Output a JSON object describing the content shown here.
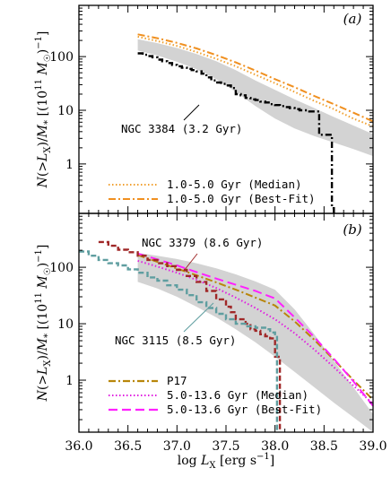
{
  "chart_data": [
    {
      "type": "line",
      "panel_label": "(a)",
      "ylabel": "N(>L_X)/M_* [(10^11 M_sun)^-1]",
      "ylog": true,
      "ylim": [
        0.12,
        900
      ],
      "xlim": [
        36.0,
        39.0
      ],
      "ytick_labels": [
        "1",
        "10",
        "100"
      ],
      "ytick_values": [
        1,
        10,
        100
      ],
      "band": {
        "x": [
          36.6,
          36.8,
          37.0,
          37.2,
          37.4,
          37.6,
          37.8,
          38.0,
          38.2,
          38.4,
          38.6,
          38.8,
          39.0
        ],
        "lower": [
          130,
          105,
          80,
          58,
          38,
          22,
          12,
          7,
          4.6,
          3.3,
          2.5,
          1.9,
          1.4
        ],
        "upper": [
          210,
          178,
          145,
          112,
          82,
          56,
          36,
          24,
          16,
          11,
          7.5,
          5.2,
          3.6
        ]
      },
      "series": [
        {
          "name": "1.0-5.0 Gyr (Median)",
          "style": "dotted",
          "color": "#f0a030",
          "x": [
            36.6,
            36.8,
            37.0,
            37.2,
            37.4,
            37.6,
            37.8,
            38.0,
            38.2,
            38.4,
            38.6,
            38.8,
            39.0
          ],
          "y": [
            235,
            195,
            158,
            122,
            91,
            66,
            46,
            32,
            22,
            15,
            10.5,
            7,
            5
          ]
        },
        {
          "name": "1.0-5.0 Gyr (Best-Fit)",
          "style": "dashdot",
          "color": "#f09020",
          "x": [
            36.6,
            36.8,
            37.0,
            37.2,
            37.4,
            37.6,
            37.8,
            38.0,
            38.2,
            38.4,
            38.6,
            38.8,
            39.0
          ],
          "y": [
            260,
            220,
            180,
            142,
            107,
            78,
            55,
            38,
            27,
            18.5,
            13,
            9,
            6.2
          ]
        },
        {
          "name": "NGC 3384 (3.2 Gyr)",
          "style": "dashdot-step",
          "color": "#000000",
          "x": [
            36.6,
            36.65,
            36.7,
            36.75,
            36.8,
            36.85,
            36.9,
            36.95,
            37.0,
            37.05,
            37.1,
            37.15,
            37.2,
            37.25,
            37.3,
            37.35,
            37.4,
            37.45,
            37.5,
            37.55,
            37.6,
            37.65,
            37.7,
            37.75,
            37.8,
            37.85,
            37.9,
            37.95,
            38.0,
            38.05,
            38.1,
            38.15,
            38.2,
            38.25,
            38.3,
            38.35,
            38.4,
            38.45,
            38.5,
            38.55,
            38.58,
            38.6
          ],
          "y": [
            115,
            108,
            102,
            97,
            88,
            82,
            76,
            70,
            66,
            62,
            59,
            56,
            53,
            48,
            41,
            36,
            33,
            31,
            29,
            26,
            20,
            19,
            17,
            16,
            15.5,
            14.5,
            14,
            13,
            12.5,
            12,
            11.5,
            11,
            10.5,
            10,
            10,
            9.5,
            9.5,
            3.5,
            3.5,
            3.5,
            0.15,
            0.12
          ]
        }
      ],
      "annotation": "NGC 3384 (3.2 Gyr)",
      "legend": [
        "1.0-5.0 Gyr (Median)",
        "1.0-5.0 Gyr (Best-Fit)"
      ]
    },
    {
      "type": "line",
      "panel_label": "(b)",
      "ylabel": "N(>L_X)/M_* [(10^11 M_sun)^-1]",
      "xlabel": "log L_X [erg s^-1]",
      "ylog": true,
      "ylim": [
        0.12,
        900
      ],
      "xlim": [
        36.0,
        39.0
      ],
      "xtick_labels": [
        "36.0",
        "36.5",
        "37.0",
        "37.5",
        "38.0",
        "38.5",
        "39.0"
      ],
      "xtick_values": [
        36.0,
        36.5,
        37.0,
        37.5,
        38.0,
        38.5,
        39.0
      ],
      "ytick_labels": [
        "1",
        "10",
        "100"
      ],
      "ytick_values": [
        1,
        10,
        100
      ],
      "band": {
        "x": [
          36.6,
          36.8,
          37.0,
          37.2,
          37.4,
          37.6,
          37.8,
          38.0,
          38.2,
          38.4,
          38.6,
          38.8,
          39.0
        ],
        "lower": [
          55,
          42,
          30,
          20,
          13,
          8,
          4.7,
          2.6,
          1.4,
          0.75,
          0.4,
          0.22,
          0.12
        ],
        "upper": [
          180,
          160,
          140,
          118,
          96,
          75,
          56,
          40,
          18,
          6.5,
          2.2,
          0.75,
          0.25
        ]
      },
      "series": [
        {
          "name": "P17",
          "style": "dashdot",
          "color": "#b8860b",
          "x": [
            36.6,
            36.8,
            37.0,
            37.2,
            37.4,
            37.6,
            37.8,
            38.0,
            38.2,
            38.4,
            38.6,
            38.8,
            39.0
          ],
          "y": [
            165,
            125,
            95,
            72,
            54,
            40,
            29,
            21,
            11,
            5.2,
            2.3,
            1.0,
            0.45
          ]
        },
        {
          "name": "5.0-13.6 Gyr (Median)",
          "style": "dotted",
          "color": "#e020e0",
          "x": [
            36.6,
            36.8,
            37.0,
            37.2,
            37.4,
            37.6,
            37.8,
            38.0,
            38.2,
            38.4,
            38.6,
            38.8,
            39.0
          ],
          "y": [
            130,
            103,
            80,
            60,
            43,
            29,
            19,
            12,
            6.8,
            3.5,
            1.7,
            0.8,
            0.38
          ]
        },
        {
          "name": "5.0-13.6 Gyr (Best-Fit)",
          "style": "dashed",
          "color": "#ff20ff",
          "x": [
            36.6,
            36.8,
            37.0,
            37.2,
            37.4,
            37.6,
            37.8,
            38.0,
            38.2,
            38.4,
            38.6,
            38.8,
            39.0
          ],
          "y": [
            175,
            138,
            108,
            82,
            63,
            49,
            38,
            28,
            13,
            5.8,
            2.4,
            0.95,
            0.35
          ]
        },
        {
          "name": "NGC 3379 (8.6 Gyr)",
          "style": "dashed-step",
          "color": "#a02828",
          "x": [
            36.2,
            36.3,
            36.4,
            36.5,
            36.6,
            36.7,
            36.8,
            36.9,
            37.0,
            37.1,
            37.2,
            37.3,
            37.4,
            37.5,
            37.55,
            37.6,
            37.7,
            37.75,
            37.8,
            37.85,
            37.9,
            37.95,
            38.0,
            38.05
          ],
          "y": [
            280,
            240,
            205,
            185,
            160,
            135,
            118,
            105,
            90,
            70,
            55,
            38,
            27,
            20,
            16,
            12,
            10,
            8,
            7.5,
            6.5,
            6,
            5.5,
            2.6,
            0.12
          ]
        },
        {
          "name": "NGC 3115 (8.5 Gyr)",
          "style": "dashed-step",
          "color": "#5f9ea0",
          "x": [
            36.0,
            36.1,
            36.2,
            36.3,
            36.4,
            36.5,
            36.6,
            36.7,
            36.8,
            36.9,
            37.0,
            37.1,
            37.2,
            37.3,
            37.4,
            37.5,
            37.6,
            37.7,
            37.8,
            37.9,
            37.95,
            38.0,
            38.02
          ],
          "y": [
            190,
            160,
            135,
            118,
            108,
            92,
            80,
            66,
            58,
            48,
            40,
            32,
            24,
            19,
            15,
            12,
            10,
            9,
            8.5,
            8,
            7,
            6.5,
            0.12
          ]
        }
      ],
      "annotations": [
        "NGC 3379 (8.6 Gyr)",
        "NGC 3115 (8.5 Gyr)"
      ],
      "legend": [
        "P17",
        "5.0-13.6 Gyr (Median)",
        "5.0-13.6 Gyr (Best-Fit)"
      ]
    }
  ]
}
